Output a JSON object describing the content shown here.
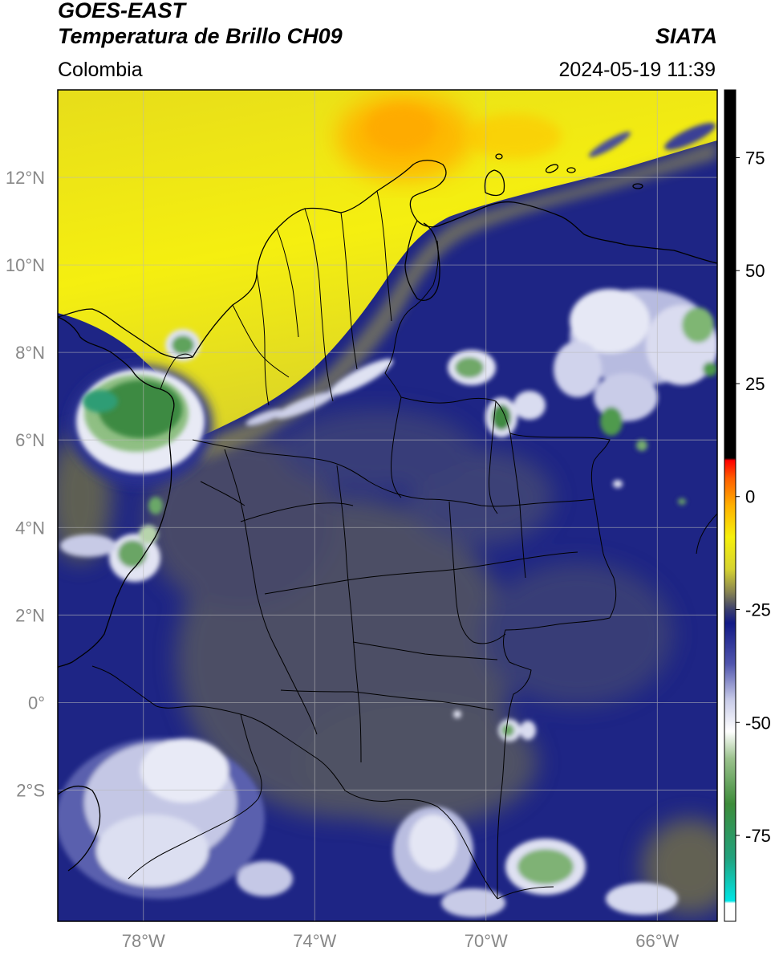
{
  "header": {
    "satellite": "GOES-EAST",
    "product": "Temperatura de Brillo CH09",
    "brand": "SIATA",
    "region": "Colombia",
    "datetime": "2024-05-19 11:39"
  },
  "map": {
    "lon_range": [
      -80,
      -64.6
    ],
    "lat_range": [
      -5,
      14
    ],
    "lat_ticks": [
      {
        "value": 12,
        "label": "12°N"
      },
      {
        "value": 10,
        "label": "10°N"
      },
      {
        "value": 8,
        "label": "8°N"
      },
      {
        "value": 6,
        "label": "6°N"
      },
      {
        "value": 4,
        "label": "4°N"
      },
      {
        "value": 2,
        "label": "2°N"
      },
      {
        "value": 0,
        "label": "0°"
      },
      {
        "value": -2,
        "label": "2°S"
      }
    ],
    "lon_ticks": [
      {
        "value": -78,
        "label": "78°W"
      },
      {
        "value": -74,
        "label": "74°W"
      },
      {
        "value": -70,
        "label": "70°W"
      },
      {
        "value": -66,
        "label": "66°W"
      }
    ],
    "grid": true
  },
  "colorbar": {
    "range": [
      -94,
      90
    ],
    "ticks": [
      {
        "value": 75,
        "label": "75"
      },
      {
        "value": 50,
        "label": "50"
      },
      {
        "value": 25,
        "label": "25"
      },
      {
        "value": 0,
        "label": "0"
      },
      {
        "value": -25,
        "label": "-25"
      },
      {
        "value": -50,
        "label": "-50"
      },
      {
        "value": -75,
        "label": "-75"
      }
    ],
    "stops": [
      {
        "value": -94,
        "color": "#ffffff"
      },
      {
        "value": -90,
        "color": "#ffffff"
      },
      {
        "value": -89.5,
        "color": "#00e5e5"
      },
      {
        "value": -80,
        "color": "#22a27d"
      },
      {
        "value": -68,
        "color": "#3d8c3a"
      },
      {
        "value": -58,
        "color": "#9bc28d"
      },
      {
        "value": -52,
        "color": "#ffffff"
      },
      {
        "value": -45,
        "color": "#c8cbe8"
      },
      {
        "value": -37,
        "color": "#5055ad"
      },
      {
        "value": -28,
        "color": "#121a86"
      },
      {
        "value": -25,
        "color": "#3b3f6e"
      },
      {
        "value": -21,
        "color": "#8a8650"
      },
      {
        "value": -16,
        "color": "#d6d330"
      },
      {
        "value": -9,
        "color": "#f6f00c"
      },
      {
        "value": -2,
        "color": "#ffb100"
      },
      {
        "value": 4,
        "color": "#ff5f00"
      },
      {
        "value": 8,
        "color": "#ff0000"
      },
      {
        "value": 8.5,
        "color": "#000000"
      },
      {
        "value": 90,
        "color": "#000000"
      }
    ]
  },
  "colors": {
    "dry_warm": "#f3ea12",
    "orange_core": "#ffb800",
    "navy": "#1b2180",
    "olive": "#4e4e58",
    "cloud_white": "#e6e8f4",
    "cloud_green": "#3f8a3f"
  }
}
